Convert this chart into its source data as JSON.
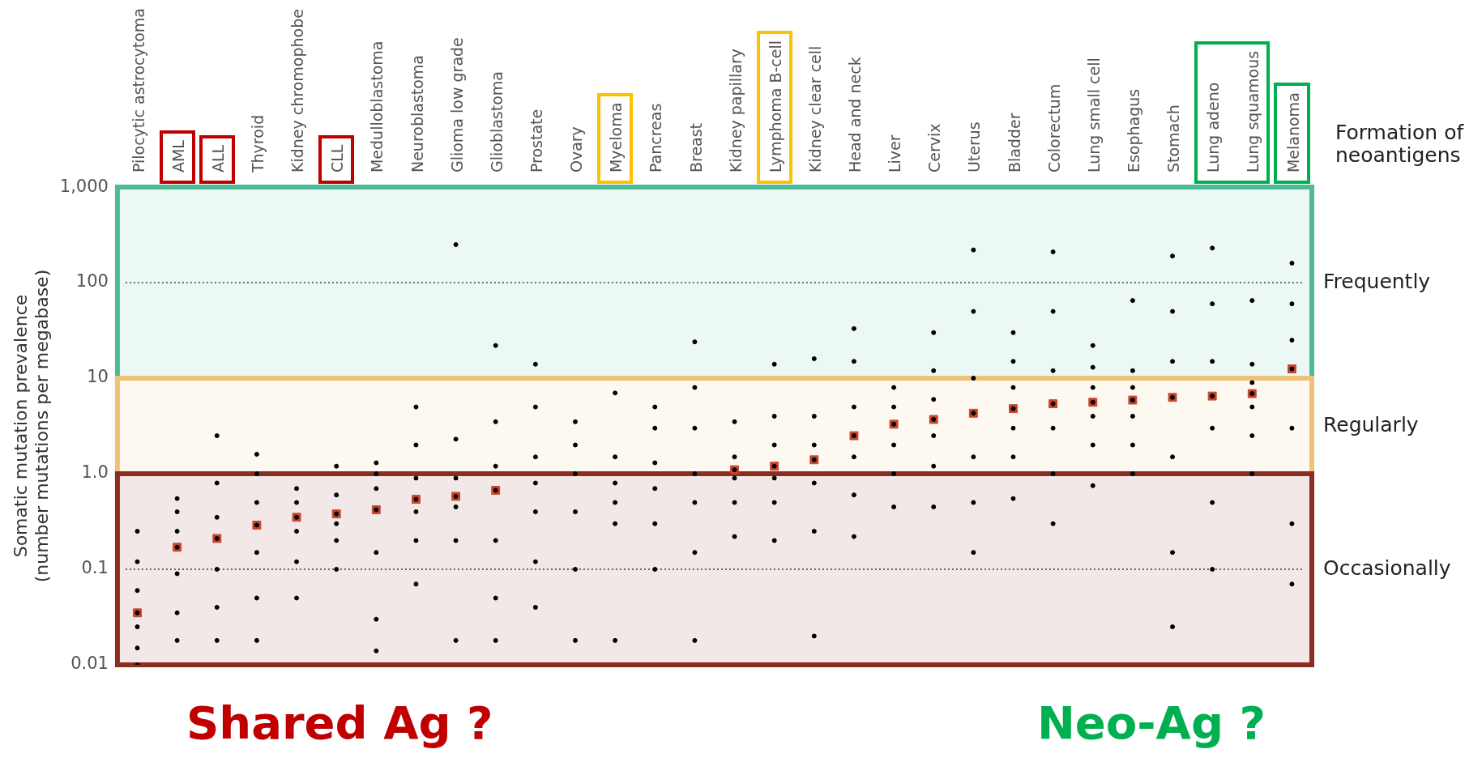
{
  "chart_data": {
    "type": "scatter",
    "ylabel": "Somatic mutation prevalence\n(number mutations per megabase)",
    "categories": [
      "Pilocytic astrocytoma",
      "AML",
      "ALL",
      "Thyroid",
      "Kidney chromophobe",
      "CLL",
      "Medulloblastoma",
      "Neuroblastoma",
      "Glioma low grade",
      "Glioblastoma",
      "Prostate",
      "Ovary",
      "Myeloma",
      "Pancreas",
      "Breast",
      "Kidney papillary",
      "Lymphoma B-cell",
      "Kidney clear cell",
      "Head and neck",
      "Liver",
      "Cervix",
      "Uterus",
      "Bladder",
      "Colorectum",
      "Lung small cell",
      "Esophagus",
      "Stomach",
      "Lung adeno",
      "Lung squamous",
      "Melanoma"
    ],
    "series": [
      {
        "color": "#000000",
        "marker": "circle",
        "x": [
          "Pilocytic astrocytoma",
          "Pilocytic astrocytoma",
          "Pilocytic astrocytoma",
          "Pilocytic astrocytoma",
          "Pilocytic astrocytoma",
          "Pilocytic astrocytoma",
          "Pilocytic astrocytoma",
          "AML",
          "AML",
          "AML",
          "AML",
          "AML",
          "AML",
          "AML",
          "ALL",
          "ALL",
          "ALL",
          "ALL",
          "ALL",
          "ALL",
          "ALL",
          "Thyroid",
          "Thyroid",
          "Thyroid",
          "Thyroid",
          "Thyroid",
          "Thyroid",
          "Thyroid",
          "Kidney chromophobe",
          "Kidney chromophobe",
          "Kidney chromophobe",
          "Kidney chromophobe",
          "Kidney chromophobe",
          "Kidney chromophobe",
          "CLL",
          "CLL",
          "CLL",
          "CLL",
          "CLL",
          "CLL",
          "Medulloblastoma",
          "Medulloblastoma",
          "Medulloblastoma",
          "Medulloblastoma",
          "Medulloblastoma",
          "Medulloblastoma",
          "Medulloblastoma",
          "Neuroblastoma",
          "Neuroblastoma",
          "Neuroblastoma",
          "Neuroblastoma",
          "Neuroblastoma",
          "Neuroblastoma",
          "Neuroblastoma",
          "Glioma low grade",
          "Glioma low grade",
          "Glioma low grade",
          "Glioma low grade",
          "Glioma low grade",
          "Glioma low grade",
          "Glioma low grade",
          "Glioblastoma",
          "Glioblastoma",
          "Glioblastoma",
          "Glioblastoma",
          "Glioblastoma",
          "Glioblastoma",
          "Glioblastoma",
          "Prostate",
          "Prostate",
          "Prostate",
          "Prostate",
          "Prostate",
          "Prostate",
          "Prostate",
          "Ovary",
          "Ovary",
          "Ovary",
          "Ovary",
          "Ovary",
          "Ovary",
          "Myeloma",
          "Myeloma",
          "Myeloma",
          "Myeloma",
          "Myeloma",
          "Myeloma",
          "Pancreas",
          "Pancreas",
          "Pancreas",
          "Pancreas",
          "Pancreas",
          "Pancreas",
          "Breast",
          "Breast",
          "Breast",
          "Breast",
          "Breast",
          "Breast",
          "Breast",
          "Kidney papillary",
          "Kidney papillary",
          "Kidney papillary",
          "Kidney papillary",
          "Kidney papillary",
          "Kidney papillary",
          "Lymphoma B-cell",
          "Lymphoma B-cell",
          "Lymphoma B-cell",
          "Lymphoma B-cell",
          "Lymphoma B-cell",
          "Lymphoma B-cell",
          "Lymphoma B-cell",
          "Kidney clear cell",
          "Kidney clear cell",
          "Kidney clear cell",
          "Kidney clear cell",
          "Kidney clear cell",
          "Kidney clear cell",
          "Kidney clear cell",
          "Head and neck",
          "Head and neck",
          "Head and neck",
          "Head and neck",
          "Head and neck",
          "Head and neck",
          "Head and neck",
          "Liver",
          "Liver",
          "Liver",
          "Liver",
          "Liver",
          "Liver",
          "Cervix",
          "Cervix",
          "Cervix",
          "Cervix",
          "Cervix",
          "Cervix",
          "Cervix",
          "Uterus",
          "Uterus",
          "Uterus",
          "Uterus",
          "Uterus",
          "Uterus",
          "Uterus",
          "Bladder",
          "Bladder",
          "Bladder",
          "Bladder",
          "Bladder",
          "Bladder",
          "Bladder",
          "Colorectum",
          "Colorectum",
          "Colorectum",
          "Colorectum",
          "Colorectum",
          "Colorectum",
          "Colorectum",
          "Lung small cell",
          "Lung small cell",
          "Lung small cell",
          "Lung small cell",
          "Lung small cell",
          "Lung small cell",
          "Lung small cell",
          "Esophagus",
          "Esophagus",
          "Esophagus",
          "Esophagus",
          "Esophagus",
          "Esophagus",
          "Esophagus",
          "Stomach",
          "Stomach",
          "Stomach",
          "Stomach",
          "Stomach",
          "Stomach",
          "Stomach",
          "Lung adeno",
          "Lung adeno",
          "Lung adeno",
          "Lung adeno",
          "Lung adeno",
          "Lung adeno",
          "Lung adeno",
          "Lung squamous",
          "Lung squamous",
          "Lung squamous",
          "Lung squamous",
          "Lung squamous",
          "Lung squamous",
          "Lung squamous",
          "Melanoma",
          "Melanoma",
          "Melanoma",
          "Melanoma",
          "Melanoma",
          "Melanoma",
          "Melanoma"
        ],
        "values": [
          0.01,
          0.015,
          0.025,
          0.035,
          0.06,
          0.12,
          0.25,
          0.018,
          0.035,
          0.09,
          0.17,
          0.25,
          0.4,
          0.55,
          0.018,
          0.04,
          0.1,
          0.21,
          0.35,
          0.8,
          2.5,
          0.018,
          0.05,
          0.15,
          0.29,
          0.5,
          1,
          1.6,
          0.05,
          0.12,
          0.25,
          0.35,
          0.5,
          0.7,
          0.1,
          0.2,
          0.3,
          0.38,
          0.6,
          1.2,
          0.014,
          0.03,
          0.15,
          0.42,
          0.7,
          1,
          1.3,
          0.07,
          0.2,
          0.4,
          0.54,
          0.9,
          2,
          5,
          0.018,
          0.2,
          0.45,
          0.58,
          0.9,
          2.3,
          250,
          0.018,
          0.05,
          0.2,
          0.67,
          1.2,
          3.5,
          22,
          0.04,
          0.12,
          0.4,
          0.8,
          1.5,
          5,
          14,
          0.018,
          0.1,
          0.4,
          1,
          2,
          3.5,
          0.018,
          0.3,
          0.5,
          0.8,
          1.5,
          7,
          0.1,
          0.3,
          0.7,
          1.3,
          3,
          5,
          0.018,
          0.15,
          0.5,
          1,
          3,
          8,
          24,
          0.22,
          0.5,
          0.9,
          1.1,
          1.5,
          3.5,
          0.2,
          0.5,
          0.9,
          1.2,
          2,
          4,
          14,
          0.02,
          0.25,
          0.8,
          1.4,
          2,
          4,
          16,
          0.22,
          0.6,
          1.5,
          2.5,
          5,
          15,
          33,
          0.45,
          1,
          2,
          3.3,
          5,
          8,
          0.45,
          1.2,
          2.5,
          3.7,
          6,
          12,
          30,
          0.15,
          0.5,
          1.5,
          4.3,
          10,
          50,
          220,
          0.55,
          1.5,
          3,
          4.8,
          8,
          15,
          30,
          0.3,
          1,
          3,
          5.4,
          12,
          50,
          210,
          0.75,
          2,
          4,
          5.6,
          8,
          13,
          22,
          1,
          2,
          4,
          5.9,
          8,
          12,
          65,
          0.025,
          0.15,
          1.5,
          6.3,
          15,
          50,
          190,
          0.1,
          0.5,
          3,
          6.5,
          15,
          60,
          230,
          1,
          2.5,
          5,
          6.9,
          9,
          14,
          65,
          0.07,
          0.3,
          3,
          12.5,
          25,
          60,
          160
        ]
      },
      {
        "color": "#c8442c",
        "marker": "square",
        "values": [
          0.035,
          0.17,
          0.21,
          0.29,
          0.35,
          0.38,
          0.42,
          0.54,
          0.58,
          0.67,
          null,
          null,
          null,
          null,
          null,
          1.1,
          1.2,
          1.4,
          2.5,
          3.3,
          3.7,
          4.3,
          4.8,
          5.4,
          5.6,
          5.9,
          6.3,
          6.5,
          6.9,
          12.5
        ]
      }
    ],
    "log": "y",
    "ylim": [
      0.01,
      1000
    ],
    "yticks": [
      0.01,
      0.1,
      {
        "value": 1,
        "label": "1.0"
      },
      10,
      100,
      {
        "value": 1000,
        "label": "1,000"
      }
    ],
    "ref_lines": [
      {
        "axis": "y",
        "value": 0.1,
        "line_style": "dotted",
        "color": "#333333"
      },
      {
        "axis": "y",
        "value": 100,
        "line_style": "dotted",
        "color": "#333333"
      }
    ],
    "bands": [
      {
        "axis": "y",
        "from": 10,
        "to": 1000,
        "label": "Frequently",
        "color": "#4dbb98"
      },
      {
        "axis": "y",
        "from": 1,
        "to": 10,
        "label": "Regularly",
        "color": "#efc27a"
      },
      {
        "axis": "y",
        "from": 0.01,
        "to": 1,
        "label": "Occasionally",
        "color": "#8b2e22"
      }
    ],
    "annotations": [
      "Formation of neoantigens",
      "Shared Ag ?",
      "Neo-Ag ?"
    ]
  }
}
